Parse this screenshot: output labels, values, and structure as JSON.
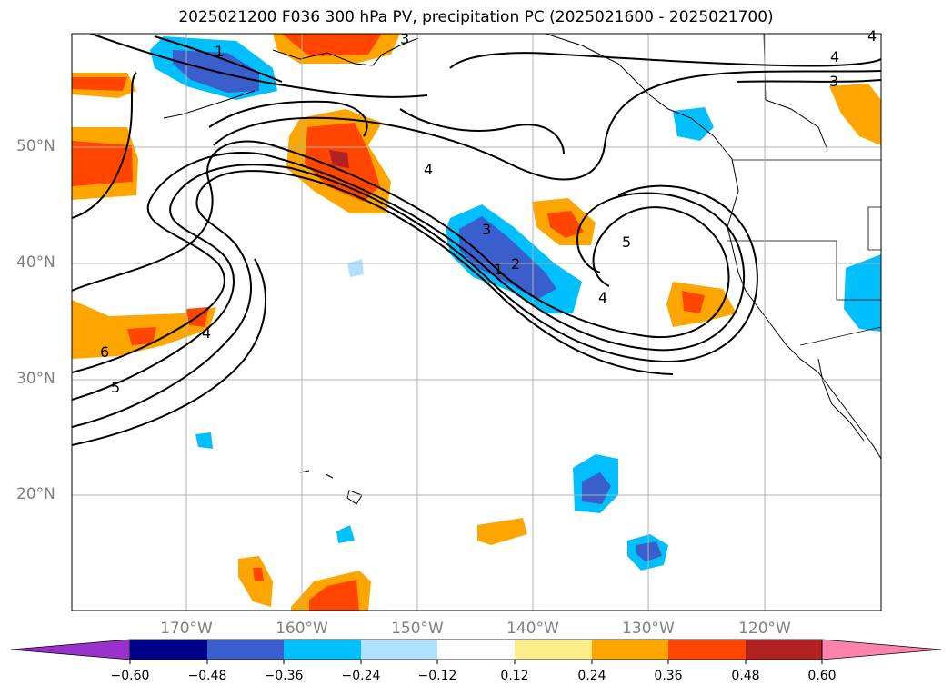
{
  "title": "2025021200 F036 300 hPa PV, precipitation PC (2025021600 - 2025021700)",
  "map": {
    "lat_labels": [
      "50°N",
      "40°N",
      "30°N",
      "20°N"
    ],
    "lon_labels": [
      "170°W",
      "160°W",
      "150°W",
      "140°W",
      "130°W",
      "120°W"
    ]
  },
  "contour_labels": [
    "1",
    "3",
    "4",
    "3",
    "4",
    "4",
    "3",
    "1",
    "2",
    "5",
    "4",
    "4",
    "6",
    "5"
  ],
  "colorbar": {
    "ticks": [
      "−0.60",
      "−0.48",
      "−0.36",
      "−0.24",
      "−0.12",
      "0.12",
      "0.24",
      "0.36",
      "0.48",
      "0.60"
    ],
    "colors": [
      "#9932cc",
      "#00008b",
      "#3a5fcd",
      "#00bfff",
      "#b0e2ff",
      "#ffffff",
      "#ffec8b",
      "#ffa500",
      "#ff4500",
      "#b22222",
      "#ff82ab"
    ]
  }
}
